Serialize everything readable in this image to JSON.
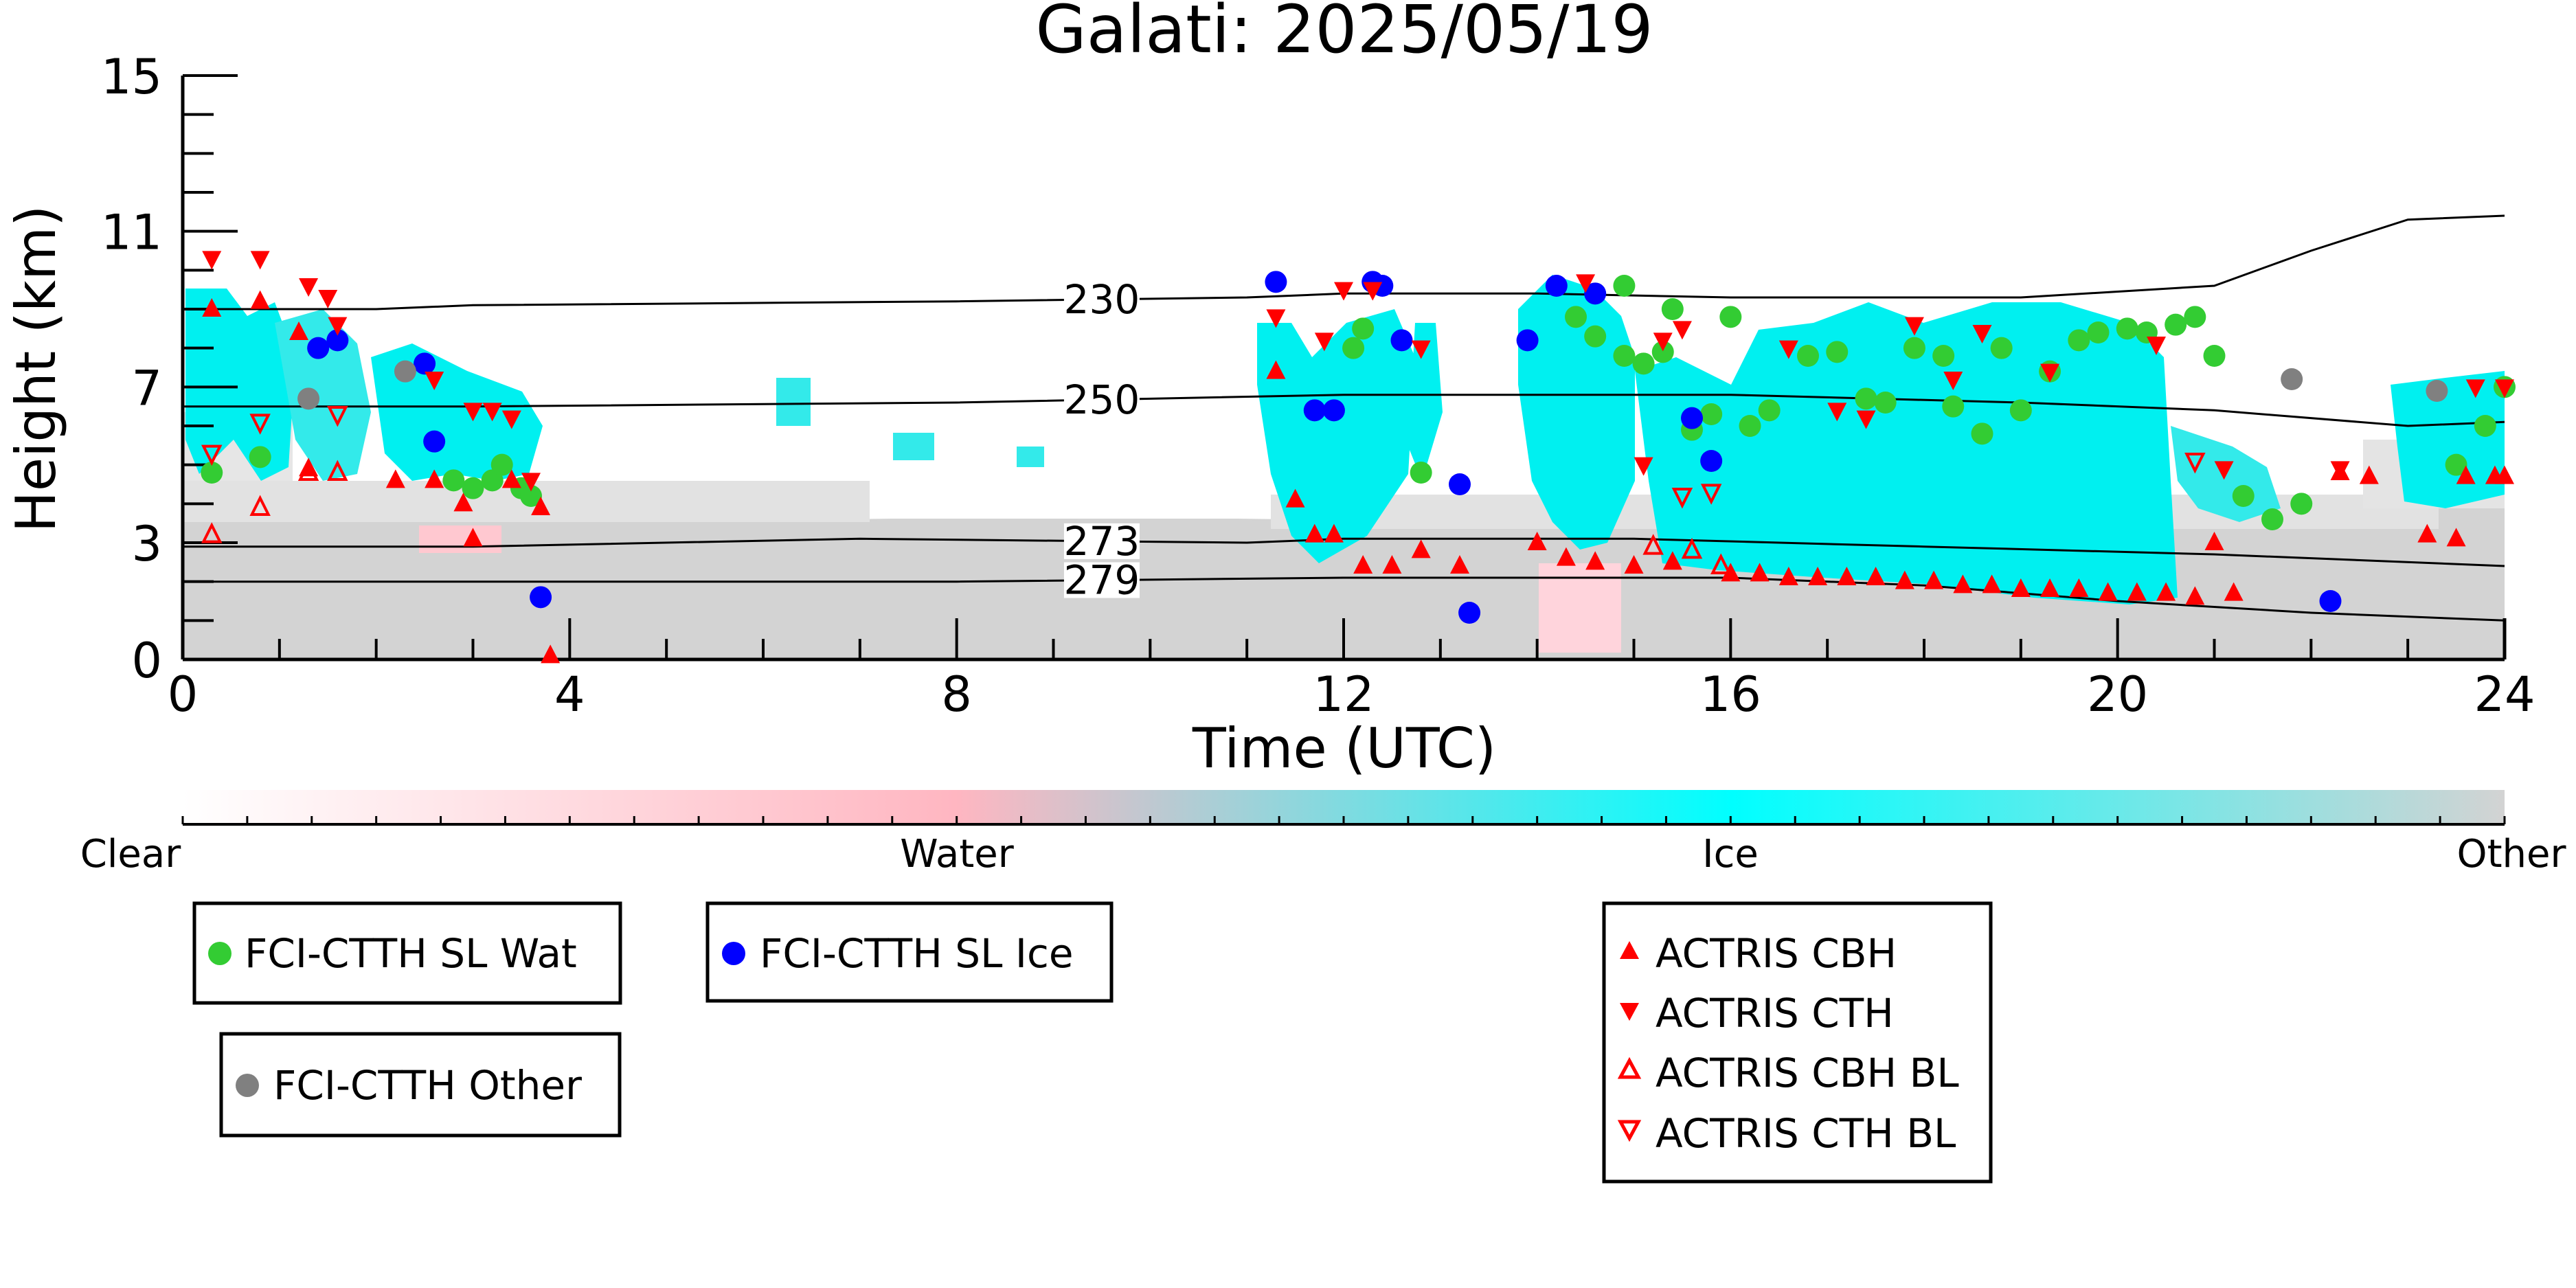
{
  "chart_data": {
    "type": "scatter",
    "title": "Galati: 2025/05/19",
    "xlabel": "Time (UTC)",
    "ylabel": "Height (km)",
    "xlim": [
      0,
      24
    ],
    "ylim": [
      0,
      15
    ],
    "xticks": [
      "0",
      "4",
      "8",
      "12",
      "16",
      "20",
      "24"
    ],
    "yticks": [
      "0",
      "3",
      "7",
      "11",
      "15"
    ],
    "colorbar": {
      "labels": [
        "Clear",
        "Water",
        "Ice",
        "Other"
      ],
      "colors": [
        "#ffffff",
        "#ffb6c1",
        "#00ffff",
        "#d3d3d3"
      ]
    },
    "contours": [
      {
        "label": "230",
        "points": [
          [
            0,
            9.0
          ],
          [
            2,
            9.0
          ],
          [
            3,
            9.1
          ],
          [
            8,
            9.2
          ],
          [
            11,
            9.3
          ],
          [
            12,
            9.4
          ],
          [
            14,
            9.4
          ],
          [
            16,
            9.3
          ],
          [
            19,
            9.3
          ],
          [
            21,
            9.6
          ],
          [
            22,
            10.5
          ],
          [
            23,
            11.3
          ],
          [
            24,
            11.4
          ]
        ]
      },
      {
        "label": "250",
        "points": [
          [
            0,
            6.5
          ],
          [
            3,
            6.5
          ],
          [
            8,
            6.6
          ],
          [
            12,
            6.8
          ],
          [
            16,
            6.8
          ],
          [
            19,
            6.6
          ],
          [
            21,
            6.4
          ],
          [
            23,
            6.0
          ],
          [
            24,
            6.1
          ]
        ]
      },
      {
        "label": "273",
        "points": [
          [
            0,
            2.9
          ],
          [
            3,
            2.9
          ],
          [
            7,
            3.1
          ],
          [
            11,
            3.0
          ],
          [
            12,
            3.1
          ],
          [
            15,
            3.1
          ],
          [
            18,
            2.9
          ],
          [
            21,
            2.7
          ],
          [
            24,
            2.4
          ]
        ]
      },
      {
        "label": "279",
        "points": [
          [
            0,
            2.0
          ],
          [
            3,
            2.0
          ],
          [
            8,
            2.0
          ],
          [
            12,
            2.1
          ],
          [
            16,
            2.1
          ],
          [
            18,
            1.9
          ],
          [
            20,
            1.5
          ],
          [
            22,
            1.2
          ],
          [
            24,
            1.0
          ]
        ]
      }
    ],
    "legend": [
      {
        "name": "FCI-CTTH SL Wat",
        "marker": "circle",
        "color": "#33cc33"
      },
      {
        "name": "FCI-CTTH SL Ice",
        "marker": "circle",
        "color": "#0000ff"
      },
      {
        "name": "FCI-CTTH Other",
        "marker": "circle",
        "color": "#808080"
      },
      {
        "name": "ACTRIS CBH",
        "marker": "triangle-up",
        "color": "#ff0000"
      },
      {
        "name": "ACTRIS CTH",
        "marker": "triangle-down",
        "color": "#ff0000"
      },
      {
        "name": "ACTRIS CBH BL",
        "marker": "triangle-up-open",
        "color": "#ff0000"
      },
      {
        "name": "ACTRIS CTH BL",
        "marker": "triangle-down-open",
        "color": "#ff0000"
      }
    ],
    "series": [
      {
        "name": "FCI-CTTH SL Wat",
        "marker": "circle",
        "color": "#33cc33",
        "points": [
          [
            0.3,
            4.8
          ],
          [
            0.8,
            5.2
          ],
          [
            2.8,
            4.6
          ],
          [
            3.0,
            4.4
          ],
          [
            3.2,
            4.6
          ],
          [
            3.3,
            5.0
          ],
          [
            3.5,
            4.4
          ],
          [
            3.6,
            4.2
          ],
          [
            12.1,
            8.0
          ],
          [
            12.2,
            8.5
          ],
          [
            12.8,
            4.8
          ],
          [
            14.4,
            8.8
          ],
          [
            14.6,
            8.3
          ],
          [
            14.9,
            7.8
          ],
          [
            15.1,
            7.6
          ],
          [
            15.3,
            7.9
          ],
          [
            15.6,
            5.9
          ],
          [
            15.8,
            6.3
          ],
          [
            16.2,
            6.0
          ],
          [
            16.4,
            6.4
          ],
          [
            16.8,
            7.8
          ],
          [
            17.1,
            7.9
          ],
          [
            17.4,
            6.7
          ],
          [
            17.6,
            6.6
          ],
          [
            17.9,
            8.0
          ],
          [
            18.2,
            7.8
          ],
          [
            18.3,
            6.5
          ],
          [
            18.6,
            5.8
          ],
          [
            18.8,
            8.0
          ],
          [
            19.0,
            6.4
          ],
          [
            19.3,
            7.4
          ],
          [
            19.6,
            8.2
          ],
          [
            19.8,
            8.4
          ],
          [
            20.1,
            8.5
          ],
          [
            20.3,
            8.4
          ],
          [
            20.6,
            8.6
          ],
          [
            20.8,
            8.8
          ],
          [
            21.0,
            7.8
          ],
          [
            21.3,
            4.2
          ],
          [
            21.6,
            3.6
          ],
          [
            21.9,
            4.0
          ],
          [
            14.9,
            9.6
          ],
          [
            15.4,
            9.0
          ],
          [
            16.0,
            8.8
          ],
          [
            23.5,
            5.0
          ],
          [
            23.8,
            6.0
          ],
          [
            24.0,
            7.0
          ]
        ]
      },
      {
        "name": "FCI-CTTH SL Ice",
        "marker": "circle",
        "color": "#0000ff",
        "points": [
          [
            1.4,
            8.0
          ],
          [
            1.6,
            8.2
          ],
          [
            2.5,
            7.6
          ],
          [
            2.6,
            5.6
          ],
          [
            3.7,
            1.6
          ],
          [
            11.3,
            9.7
          ],
          [
            11.7,
            6.4
          ],
          [
            11.9,
            6.4
          ],
          [
            12.3,
            9.7
          ],
          [
            12.4,
            9.6
          ],
          [
            12.6,
            8.2
          ],
          [
            13.2,
            4.5
          ],
          [
            13.3,
            1.2
          ],
          [
            13.9,
            8.2
          ],
          [
            14.2,
            9.6
          ],
          [
            14.6,
            9.4
          ],
          [
            15.6,
            6.2
          ],
          [
            15.8,
            5.1
          ],
          [
            22.2,
            1.5
          ]
        ]
      },
      {
        "name": "FCI-CTTH Other",
        "marker": "circle",
        "color": "#808080",
        "points": [
          [
            1.3,
            6.7
          ],
          [
            2.3,
            7.4
          ],
          [
            21.8,
            7.2
          ],
          [
            23.3,
            6.9
          ]
        ]
      },
      {
        "name": "ACTRIS CBH",
        "marker": "triangle-up",
        "color": "#ff0000",
        "points": [
          [
            0.3,
            9.0
          ],
          [
            0.8,
            9.2
          ],
          [
            1.2,
            8.4
          ],
          [
            1.3,
            4.9
          ],
          [
            2.2,
            4.6
          ],
          [
            2.6,
            4.6
          ],
          [
            2.9,
            4.0
          ],
          [
            3.0,
            3.1
          ],
          [
            3.4,
            4.6
          ],
          [
            3.7,
            3.9
          ],
          [
            3.8,
            0.1
          ],
          [
            11.3,
            7.4
          ],
          [
            11.5,
            4.1
          ],
          [
            11.7,
            3.2
          ],
          [
            11.9,
            3.2
          ],
          [
            12.2,
            2.4
          ],
          [
            12.5,
            2.4
          ],
          [
            12.8,
            2.8
          ],
          [
            13.2,
            2.4
          ],
          [
            14.0,
            3.0
          ],
          [
            14.3,
            2.6
          ],
          [
            14.6,
            2.5
          ],
          [
            15.0,
            2.4
          ],
          [
            15.4,
            2.5
          ],
          [
            16.0,
            2.2
          ],
          [
            16.3,
            2.2
          ],
          [
            16.6,
            2.1
          ],
          [
            16.9,
            2.1
          ],
          [
            17.2,
            2.1
          ],
          [
            17.5,
            2.1
          ],
          [
            17.8,
            2.0
          ],
          [
            18.1,
            2.0
          ],
          [
            18.4,
            1.9
          ],
          [
            18.7,
            1.9
          ],
          [
            19.0,
            1.8
          ],
          [
            19.3,
            1.8
          ],
          [
            19.6,
            1.8
          ],
          [
            19.9,
            1.7
          ],
          [
            20.2,
            1.7
          ],
          [
            20.5,
            1.7
          ],
          [
            20.8,
            1.6
          ],
          [
            21.0,
            3.0
          ],
          [
            21.2,
            1.7
          ],
          [
            22.3,
            4.8
          ],
          [
            22.6,
            4.7
          ],
          [
            23.2,
            3.2
          ],
          [
            23.5,
            3.1
          ],
          [
            23.6,
            4.7
          ],
          [
            23.9,
            4.7
          ],
          [
            24.0,
            4.7
          ]
        ]
      },
      {
        "name": "ACTRIS CTH",
        "marker": "triangle-down",
        "color": "#ff0000",
        "points": [
          [
            0.3,
            10.3
          ],
          [
            0.8,
            10.3
          ],
          [
            1.3,
            9.6
          ],
          [
            1.5,
            9.3
          ],
          [
            1.6,
            8.6
          ],
          [
            2.6,
            7.2
          ],
          [
            3.0,
            6.4
          ],
          [
            3.2,
            6.4
          ],
          [
            3.4,
            6.2
          ],
          [
            3.6,
            4.6
          ],
          [
            11.3,
            8.8
          ],
          [
            11.8,
            8.2
          ],
          [
            12.0,
            9.5
          ],
          [
            12.3,
            9.5
          ],
          [
            12.8,
            8.0
          ],
          [
            14.5,
            9.7
          ],
          [
            15.1,
            5.0
          ],
          [
            15.3,
            8.2
          ],
          [
            15.5,
            8.5
          ],
          [
            16.6,
            8.0
          ],
          [
            17.1,
            6.4
          ],
          [
            17.4,
            6.2
          ],
          [
            17.9,
            8.6
          ],
          [
            18.3,
            7.2
          ],
          [
            18.6,
            8.4
          ],
          [
            19.3,
            7.4
          ],
          [
            20.4,
            8.1
          ],
          [
            21.1,
            4.9
          ],
          [
            22.3,
            4.9
          ],
          [
            23.7,
            7.0
          ],
          [
            24.0,
            7.0
          ]
        ]
      },
      {
        "name": "ACTRIS CBH BL",
        "marker": "triangle-up-open",
        "color": "#ff0000",
        "points": [
          [
            0.3,
            3.2
          ],
          [
            0.8,
            3.9
          ],
          [
            1.3,
            4.8
          ],
          [
            1.6,
            4.8
          ],
          [
            15.2,
            2.9
          ],
          [
            15.6,
            2.8
          ],
          [
            15.9,
            2.4
          ]
        ]
      },
      {
        "name": "ACTRIS CTH BL",
        "marker": "triangle-down-open",
        "color": "#ff0000",
        "points": [
          [
            0.3,
            5.3
          ],
          [
            0.8,
            6.1
          ],
          [
            1.6,
            6.3
          ],
          [
            15.5,
            4.2
          ],
          [
            15.8,
            4.3
          ],
          [
            20.8,
            5.1
          ]
        ]
      }
    ]
  }
}
